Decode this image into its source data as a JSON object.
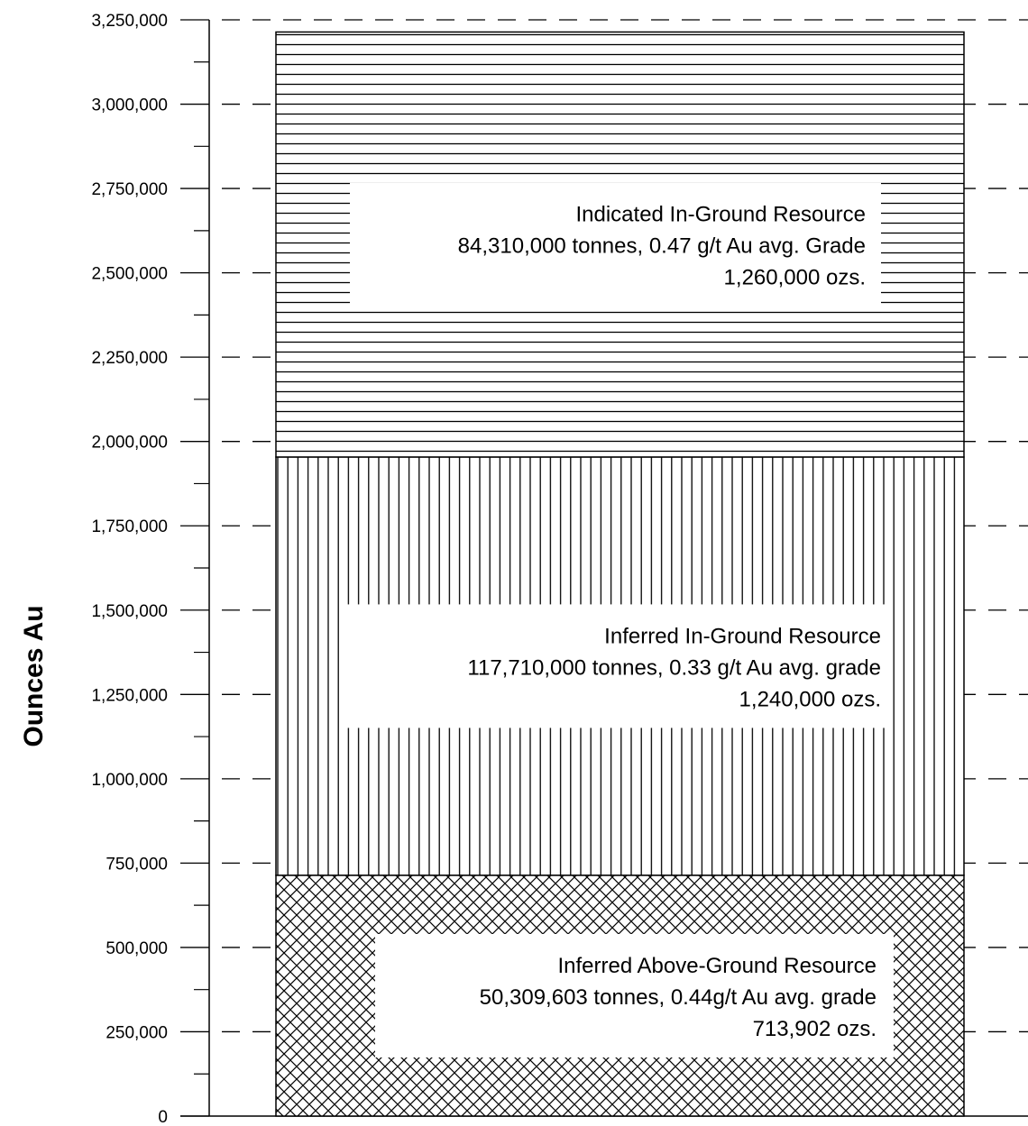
{
  "chart_data": {
    "type": "bar",
    "stacked": true,
    "ylabel": "Ounces Au",
    "ylim": [
      0,
      3250000
    ],
    "yticks": [
      0,
      250000,
      500000,
      750000,
      1000000,
      1250000,
      1500000,
      1750000,
      2000000,
      2250000,
      2500000,
      2750000,
      3000000,
      3250000
    ],
    "ytick_labels": [
      "0",
      "250,000",
      "500,000",
      "750,000",
      "1,000,000",
      "1,250,000",
      "1,500,000",
      "1,750,000",
      "2,000,000",
      "2,250,000",
      "2,500,000",
      "2,750,000",
      "3,000,000",
      "3,250,000"
    ],
    "grid": "dashed horizontal",
    "series": [
      {
        "values": [
          713902
        ],
        "pattern": "crosshatch",
        "label_lines": [
          "Inferred Above-Ground Resource",
          "50,309,603 tonnes, 0.44g/t Au avg. grade",
          "713,902 ozs."
        ]
      },
      {
        "values": [
          1240000
        ],
        "pattern": "vertical",
        "label_lines": [
          "Inferred In-Ground Resource",
          "117,710,000 tonnes, 0.33 g/t Au avg. grade",
          "1,240,000 ozs."
        ]
      },
      {
        "values": [
          1260000
        ],
        "pattern": "horizontal",
        "label_lines": [
          "Indicated In-Ground Resource",
          "84,310,000 tonnes, 0.47 g/t Au avg. Grade",
          "1,260,000 ozs."
        ]
      }
    ]
  }
}
